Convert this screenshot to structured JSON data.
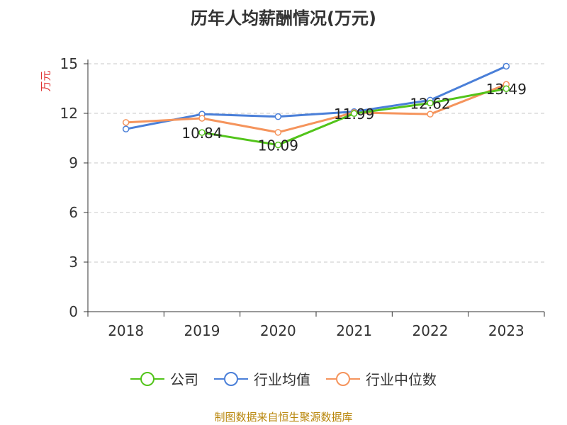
{
  "chart_data": {
    "type": "line",
    "title": "历年人均薪酬情况(万元)",
    "ylabel": "万元",
    "xlabel": "",
    "categories": [
      "2018",
      "2019",
      "2020",
      "2021",
      "2022",
      "2023"
    ],
    "ylim": [
      0,
      15
    ],
    "yticks": [
      "0",
      "3",
      "6",
      "9",
      "12",
      "15"
    ],
    "grid": true,
    "legend_position": "bottom",
    "series": [
      {
        "name": "公司",
        "color": "#52c41a",
        "values": [
          null,
          10.84,
          10.09,
          11.99,
          12.62,
          13.49
        ],
        "labels": [
          null,
          "10.84",
          "10.09",
          "11.99",
          "12.62",
          "13.49"
        ]
      },
      {
        "name": "行业均值",
        "color": "#4a7fd8",
        "values": [
          11.05,
          11.95,
          11.8,
          12.1,
          12.8,
          14.85
        ]
      },
      {
        "name": "行业中位数",
        "color": "#f5945c",
        "values": [
          11.45,
          11.7,
          10.85,
          12.05,
          11.95,
          13.75
        ]
      }
    ]
  },
  "source": "制图数据来自恒生聚源数据库"
}
